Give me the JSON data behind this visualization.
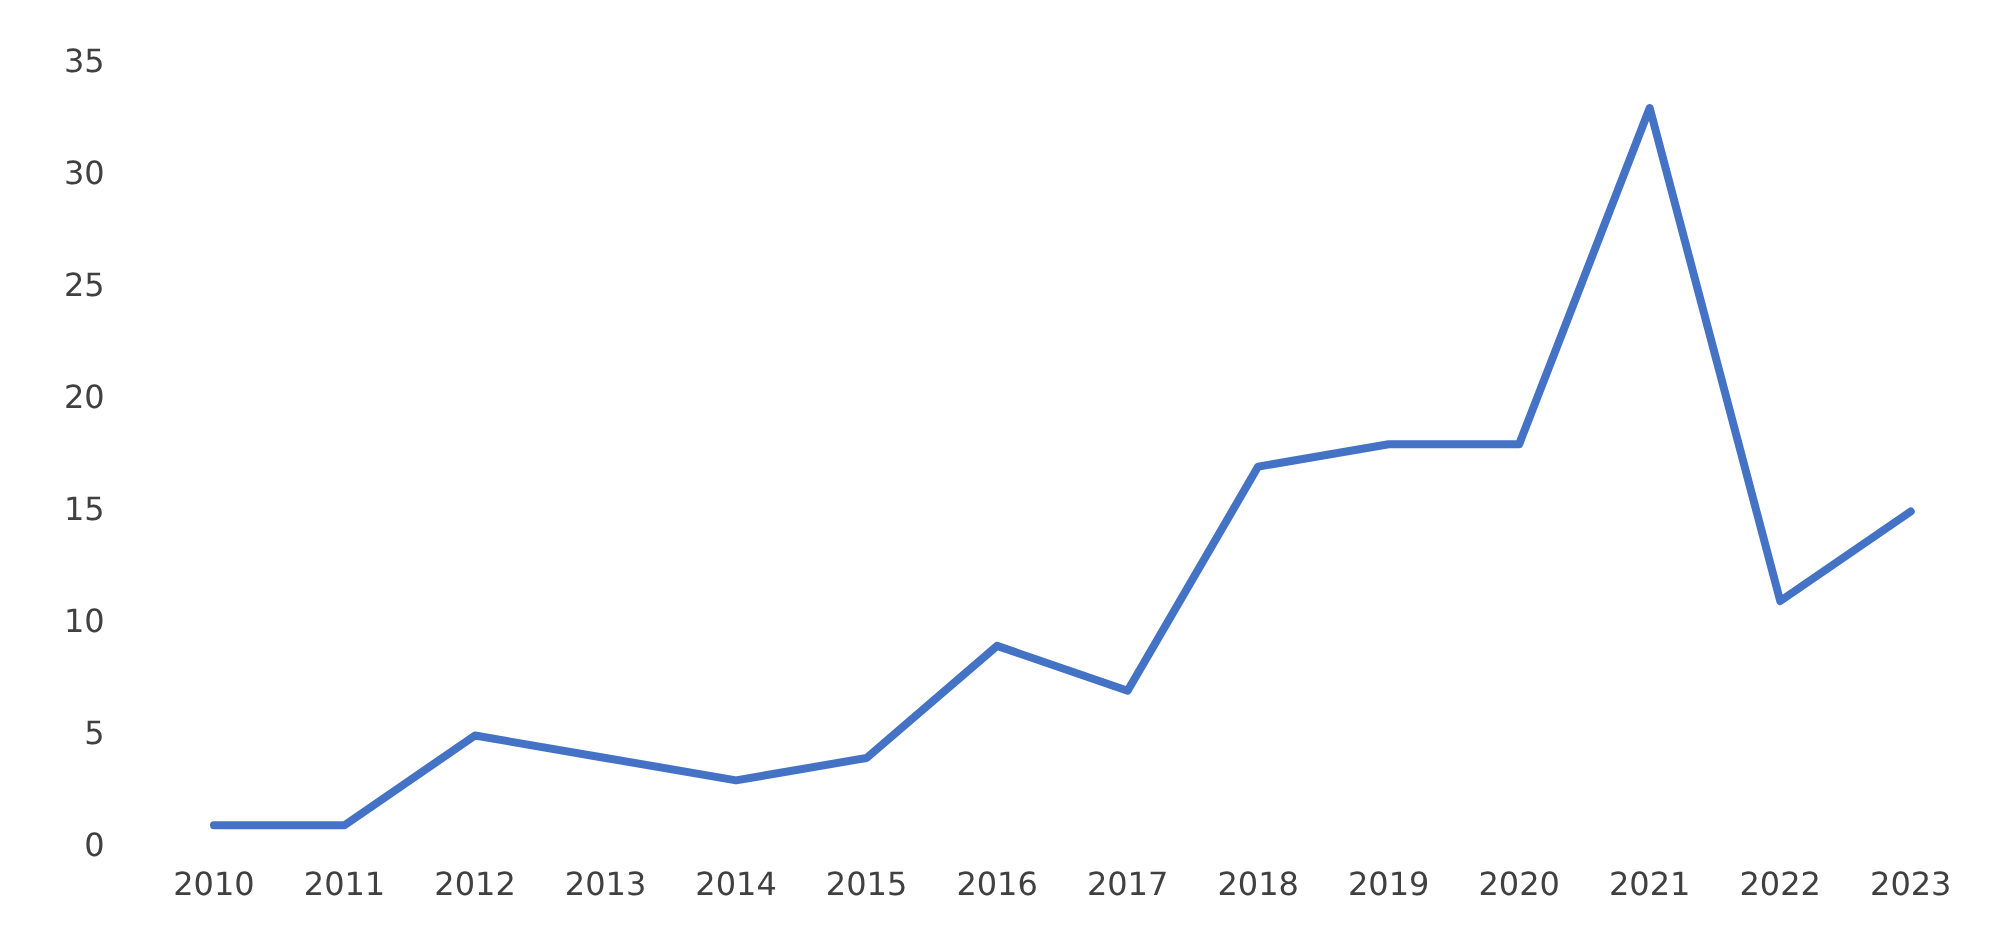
{
  "chart_data": {
    "type": "line",
    "categories": [
      "2010",
      "2011",
      "2012",
      "2013",
      "2014",
      "2015",
      "2016",
      "2017",
      "2018",
      "2019",
      "2020",
      "2021",
      "2022",
      "2023"
    ],
    "series": [
      {
        "color": "#4472c4",
        "values": [
          1,
          1,
          5,
          4,
          3,
          4,
          9,
          7,
          17,
          18,
          18,
          33,
          11,
          15
        ]
      }
    ],
    "ylim": [
      0,
      35
    ],
    "yticks": [
      0,
      5,
      10,
      15,
      20,
      25,
      30,
      35
    ],
    "grid": false,
    "legend": false,
    "marker": "none",
    "line_style": "solid"
  }
}
